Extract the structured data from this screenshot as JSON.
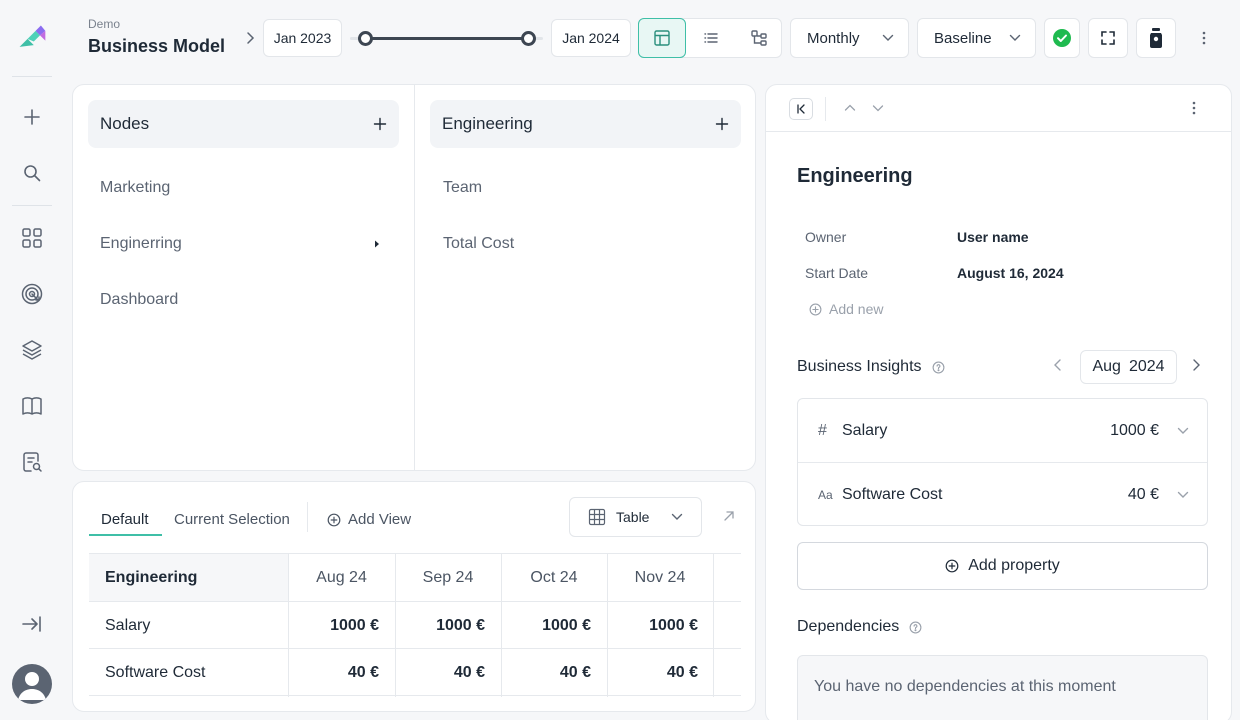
{
  "header": {
    "project": "Demo",
    "title": "Business Model",
    "start_date": "Jan 2023",
    "end_date": "Jan 2024",
    "period": "Monthly",
    "scenario": "Baseline",
    "range_start_fraction": 0.0,
    "range_end_fraction": 1.0
  },
  "nodes": {
    "header": "Nodes",
    "items": [
      "Marketing",
      "Enginerring",
      "Dashboard"
    ]
  },
  "engineering_column": {
    "header": "Engineering",
    "items": [
      "Team",
      "Total Cost"
    ]
  },
  "views": {
    "tabs": [
      "Default",
      "Current Selection"
    ],
    "add_view": "Add View",
    "view_type": "Table"
  },
  "table": {
    "row_header": "Engineering",
    "columns": [
      "Aug 24",
      "Sep 24",
      "Oct 24",
      "Nov 24"
    ],
    "rows": [
      {
        "label": "Salary",
        "values": [
          "1000 €",
          "1000 €",
          "1000 €",
          "1000 €"
        ]
      },
      {
        "label": "Software Cost",
        "values": [
          "40 €",
          "40 €",
          "40 €",
          "40 €"
        ]
      }
    ]
  },
  "details": {
    "title": "Engineering",
    "owner_label": "Owner",
    "owner_value": "User name",
    "start_label": "Start Date",
    "start_value": "August 16, 2024",
    "add_new": "Add new",
    "insights_label": "Business Insights",
    "insights_month": "Aug",
    "insights_year": "2024",
    "metrics": [
      {
        "icon": "#",
        "name": "Salary",
        "value": "1000 €"
      },
      {
        "icon": "Aa",
        "name": "Software Cost",
        "value": "40 €"
      }
    ],
    "add_property": "Add property",
    "dependencies_label": "Dependencies",
    "dependencies_empty": "You have no dependencies at this moment"
  },
  "colors": {
    "accent": "#3fbfa7",
    "success": "#1fba4f",
    "active_view_bg": "#e8f7f4"
  }
}
